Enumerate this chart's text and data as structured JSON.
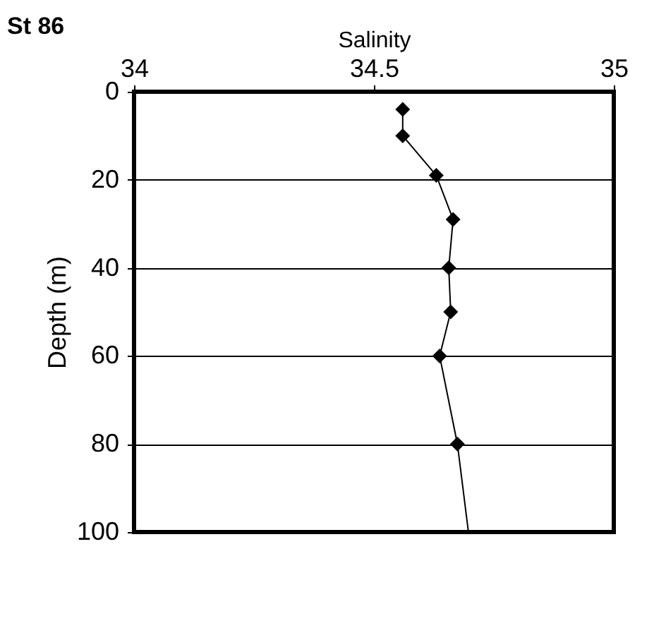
{
  "chart_data": {
    "type": "scatter",
    "title": "St 86",
    "xlabel": "Salinity",
    "ylabel": "Depth (m)",
    "xlim": [
      34,
      35
    ],
    "xticks": [
      34,
      34.5,
      35
    ],
    "ylim": [
      100,
      0
    ],
    "yticks": [
      0,
      20,
      40,
      60,
      80,
      100
    ],
    "grid": "y",
    "series": [
      {
        "type": "line",
        "color": "#000000",
        "marker": "none",
        "x": [
          34.56,
          34.56,
          34.63,
          34.665,
          34.656,
          34.66,
          34.637,
          34.674,
          34.697
        ],
        "values": [
          4,
          10,
          19,
          29,
          40,
          50,
          60,
          80,
          100
        ]
      },
      {
        "color": "#000000",
        "marker": "diamond",
        "x": [
          34.56,
          34.56,
          34.63,
          34.665,
          34.656,
          34.66,
          34.637,
          34.674
        ],
        "values": [
          4,
          10,
          19,
          29,
          40,
          50,
          60,
          80
        ]
      }
    ]
  }
}
